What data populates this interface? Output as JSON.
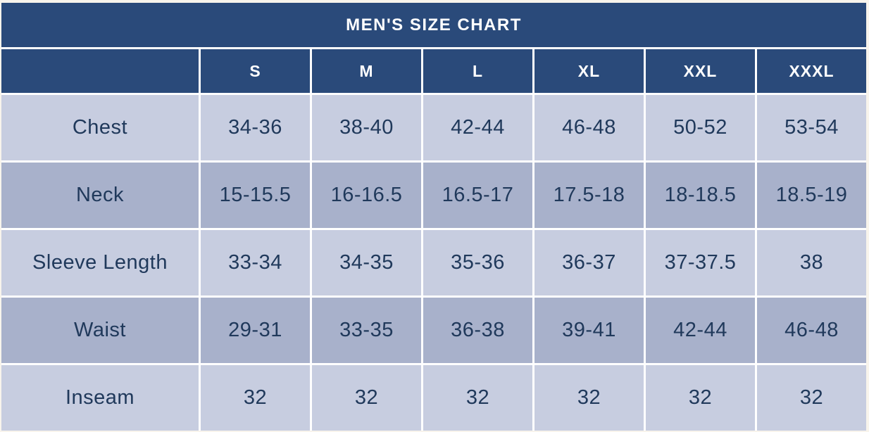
{
  "chart_data": {
    "type": "table",
    "title": "MEN'S SIZE CHART",
    "columns": [
      "S",
      "M",
      "L",
      "XL",
      "XXL",
      "XXXL"
    ],
    "rows": [
      {
        "label": "Chest",
        "values": [
          "34-36",
          "38-40",
          "42-44",
          "46-48",
          "50-52",
          "53-54"
        ]
      },
      {
        "label": "Neck",
        "values": [
          "15-15.5",
          "16-16.5",
          "16.5-17",
          "17.5-18",
          "18-18.5",
          "18.5-19"
        ]
      },
      {
        "label": "Sleeve Length",
        "values": [
          "33-34",
          "34-35",
          "35-36",
          "36-37",
          "37-37.5",
          "38"
        ]
      },
      {
        "label": "Waist",
        "values": [
          "29-31",
          "33-35",
          "36-38",
          "39-41",
          "42-44",
          "46-48"
        ]
      },
      {
        "label": "Inseam",
        "values": [
          "32",
          "32",
          "32",
          "32",
          "32",
          "32"
        ]
      }
    ]
  },
  "colors": {
    "header_bg": "#2a4a7a",
    "header_text": "#ffffff",
    "row_light_bg": "#c7cde0",
    "row_dark_bg": "#a8b1cb",
    "cell_text": "#20395b",
    "gap": "#ffffff",
    "page_bg": "#f8f4ec"
  }
}
